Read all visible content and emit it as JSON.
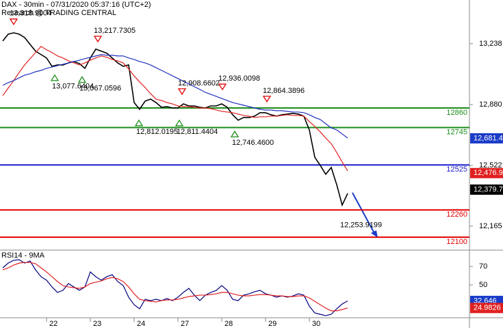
{
  "chart_data": [
    {
      "type": "line",
      "title": "DAX - 30min - 07/31/2020 05:37:16 (UTC+2)",
      "subtitle": "Research @ TRADING CENTRAL",
      "categories": [
        null,
        null,
        null,
        null,
        null,
        null,
        null,
        null,
        "22",
        null,
        null,
        null,
        null,
        null,
        null,
        null,
        "23",
        null,
        null,
        null,
        null,
        null,
        null,
        null,
        "24",
        null,
        null,
        null,
        null,
        null,
        null,
        null,
        "27",
        null,
        null,
        null,
        null,
        null,
        null,
        null,
        "28",
        null,
        null,
        null,
        null,
        null,
        null,
        null,
        "29",
        null,
        null,
        null,
        null,
        null,
        null,
        null,
        "30",
        null,
        null,
        null,
        null,
        null,
        null,
        null
      ],
      "series": [
        {
          "color": "#000000",
          "values": [
            13254,
            13294,
            13302,
            13294,
            13274,
            13234,
            13194,
            13174,
            13154,
            13105,
            13113,
            13113,
            13125,
            13133,
            13121,
            13093,
            13154,
            13206,
            13194,
            13182,
            13154,
            13125,
            13105,
            13113,
            12892,
            12852,
            12900,
            12912,
            12892,
            12864,
            12868,
            12860,
            12860,
            12884,
            12872,
            12872,
            12864,
            12860,
            12872,
            12872,
            12884,
            12864,
            12820,
            12788,
            12804,
            12804,
            12812,
            12832,
            12832,
            12820,
            12812,
            12820,
            12824,
            12828,
            12824,
            12812,
            12731,
            12570,
            12522,
            12470,
            12510,
            12409,
            12289,
            12357
          ]
        },
        {
          "color": "#e02020",
          "values": [
            12932,
            12977,
            13021,
            13069,
            13113,
            13150,
            13186,
            13222,
            13202,
            13186,
            13166,
            13154,
            13137,
            13125,
            13113,
            13125,
            13141,
            13154,
            13166,
            13158,
            13145,
            13137,
            13125,
            13089,
            13049,
            13013,
            12981,
            12944,
            12912,
            12904,
            12892,
            12884,
            12872,
            12868,
            12868,
            12864,
            12860,
            12860,
            12856,
            12848,
            12840,
            12836,
            12832,
            12824,
            12816,
            12812,
            12804,
            12808,
            12808,
            12812,
            12812,
            12816,
            12820,
            12816,
            12816,
            12812,
            12780,
            12751,
            12719,
            12683,
            12650,
            12598,
            12542,
            12490
          ]
        },
        {
          "color": "#2030c0",
          "values": [
            12993,
            13009,
            13021,
            13037,
            13053,
            13061,
            13073,
            13081,
            13093,
            13101,
            13109,
            13117,
            13125,
            13133,
            13141,
            13150,
            13158,
            13166,
            13174,
            13170,
            13170,
            13166,
            13166,
            13154,
            13145,
            13133,
            13125,
            13113,
            13097,
            13081,
            13065,
            13049,
            13033,
            13017,
            13001,
            12985,
            12969,
            12952,
            12940,
            12928,
            12916,
            12904,
            12892,
            12884,
            12876,
            12868,
            12860,
            12852,
            12848,
            12848,
            12844,
            12844,
            12840,
            12836,
            12836,
            12832,
            12820,
            12804,
            12792,
            12767,
            12743,
            12731,
            12707,
            12683
          ]
        }
      ],
      "ylim": [
        12028,
        13495
      ],
      "yticks": [
        {
          "value": 13238,
          "label": "13,238"
        },
        {
          "value": 12880,
          "label": "12,880"
        },
        {
          "value": 12522,
          "label": "12,522"
        },
        {
          "value": 12165,
          "label": "12,165"
        }
      ],
      "levels": [
        {
          "value": 12860,
          "color": "#1a8c1a"
        },
        {
          "value": 12745,
          "color": "#1a8c1a"
        },
        {
          "value": 12525,
          "color": "#1a1acc"
        },
        {
          "value": 12260,
          "color": "#e00000"
        },
        {
          "value": 12100,
          "color": "#e00000"
        }
      ],
      "annotations": [
        {
          "kind": "high",
          "value": 13318.9004,
          "label": "13,318.9004"
        },
        {
          "kind": "high",
          "value": 13217.7305,
          "label": "13,217.7305"
        },
        {
          "kind": "low",
          "value": 13077.6404,
          "label": "13,077.6404"
        },
        {
          "kind": "low",
          "value": 13067.0596,
          "label": "13,067.0596"
        },
        {
          "kind": "high",
          "value": 12908.6602,
          "label": "12,908.6602"
        },
        {
          "kind": "high",
          "value": 12936.0098,
          "label": "12,936.0098"
        },
        {
          "kind": "high",
          "value": 12864.3896,
          "label": "12,864.3896"
        },
        {
          "kind": "low",
          "value": 12812.0195,
          "label": "12,812.0195"
        },
        {
          "kind": "low",
          "value": 12811.4404,
          "label": "12,811.4404"
        },
        {
          "kind": "low",
          "value": 12746.46,
          "label": "12,746.4600"
        },
        {
          "kind": "target",
          "value": 12253.9199,
          "label": "12,253.9199"
        }
      ],
      "price_labels": [
        {
          "value": 12681.4,
          "label": "12,681.4",
          "color": "#1a3cc8"
        },
        {
          "value": 12476.9,
          "label": "12,476.9",
          "color": "#e02020"
        },
        {
          "value": 12379.7,
          "label": "12,379.7",
          "color": "#000000"
        }
      ]
    },
    {
      "type": "line",
      "title": "RSI14 - 9MA",
      "series": [
        {
          "color": "#000080",
          "values": [
            68.5,
            73.7,
            76.7,
            77.4,
            73.7,
            75.9,
            66.3,
            58.9,
            55.2,
            47.8,
            41.9,
            44.1,
            51.5,
            47.8,
            44.1,
            47.8,
            64.1,
            58.9,
            55.2,
            58.9,
            61.1,
            53.7,
            49.3,
            36.7,
            28.5,
            24.1,
            34.4,
            33.0,
            34.4,
            33.0,
            35.2,
            33.0,
            36.7,
            41.9,
            46.3,
            38.9,
            33.0,
            38.9,
            41.9,
            44.1,
            49.3,
            44.1,
            34.4,
            33.0,
            38.9,
            40.4,
            42.6,
            44.1,
            40.4,
            38.9,
            36.7,
            38.1,
            36.7,
            38.1,
            40.4,
            38.9,
            27.0,
            19.6,
            18.1,
            16.7,
            18.1,
            24.1,
            29.3,
            32.646
          ]
        },
        {
          "color": "#e02020",
          "values": [
            66.3,
            68.5,
            71.5,
            73.7,
            74.4,
            74.4,
            73.0,
            68.5,
            64.1,
            58.9,
            53.7,
            49.3,
            47.8,
            47.0,
            46.3,
            47.8,
            51.5,
            53.0,
            54.4,
            56.7,
            58.1,
            56.7,
            53.7,
            47.8,
            40.4,
            34.4,
            33.0,
            32.2,
            31.5,
            33.0,
            33.7,
            33.7,
            34.4,
            35.9,
            37.4,
            38.1,
            38.9,
            38.9,
            39.6,
            40.4,
            41.9,
            41.9,
            40.4,
            38.9,
            38.1,
            38.1,
            38.9,
            39.6,
            39.6,
            38.9,
            38.1,
            38.1,
            37.4,
            37.4,
            38.1,
            38.1,
            35.9,
            32.2,
            28.5,
            24.8,
            21.9,
            21.9,
            23.3,
            24.9826
          ]
        }
      ],
      "ylim": [
        14.4,
        86.3
      ],
      "yticks": [
        70,
        50
      ],
      "price_labels": [
        {
          "value": 32.646,
          "label": "32.646",
          "color": "#1a3cc8"
        },
        {
          "value": 24.9826,
          "label": "24.9826",
          "color": "#e02020"
        }
      ]
    }
  ]
}
